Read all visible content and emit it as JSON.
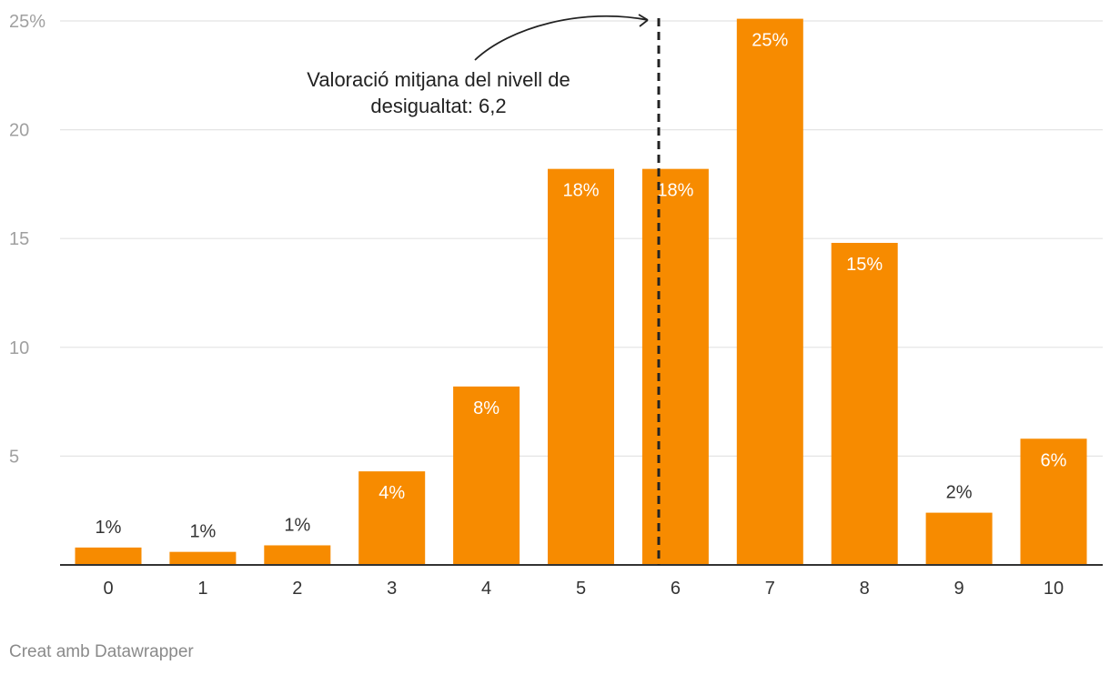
{
  "chart_data": {
    "type": "bar",
    "categories": [
      "0",
      "1",
      "2",
      "3",
      "4",
      "5",
      "6",
      "7",
      "8",
      "9",
      "10"
    ],
    "values": [
      0.8,
      0.6,
      0.9,
      4.3,
      8.2,
      18.2,
      18.2,
      25.1,
      14.8,
      2.4,
      5.8
    ],
    "value_labels": [
      "1%",
      "1%",
      "1%",
      "4%",
      "8%",
      "18%",
      "18%",
      "25%",
      "15%",
      "2%",
      "6%"
    ],
    "ylim": [
      0,
      25
    ],
    "yticks": [
      5,
      10,
      15,
      20,
      25
    ],
    "ytick_labels": [
      "5",
      "10",
      "15",
      "20",
      "25%"
    ],
    "grid": true,
    "mean_line": {
      "x": 6.2,
      "label": "Valoració mitjana del nivell de desigualtat: 6,2"
    },
    "colors": {
      "bar": "#f78b00",
      "grid": "#e4e4e4",
      "axis": "#333333",
      "mean_line": "#222222"
    }
  },
  "credit": "Creat amb Datawrapper"
}
